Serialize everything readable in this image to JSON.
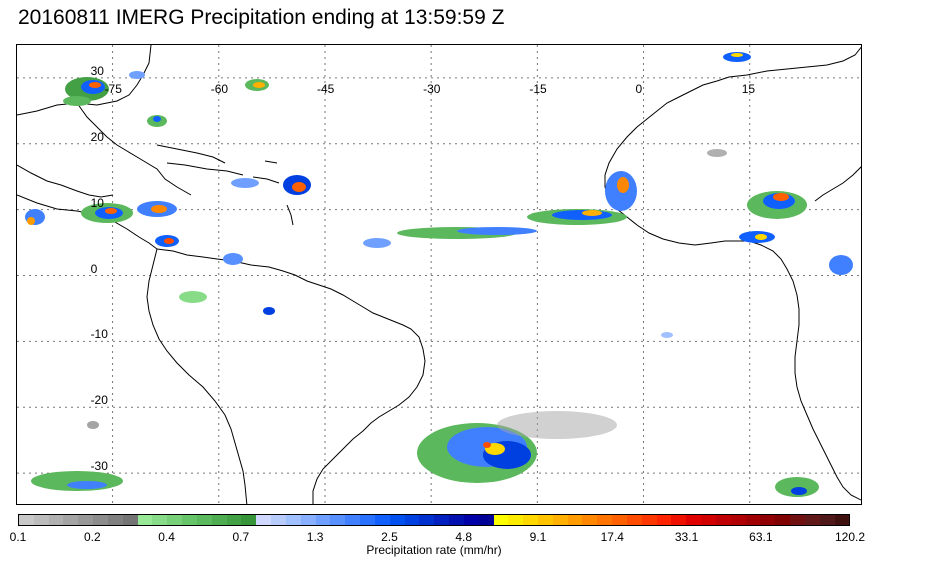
{
  "title": "20160811 IMERG Precipitation ending at 13:59:59 Z",
  "map": {
    "lon_labels": [
      "-75",
      "-60",
      "-45",
      "-30",
      "-15",
      "0",
      "15"
    ],
    "lat_labels": [
      "30",
      "20",
      "10",
      "0",
      "-10",
      "-20",
      "-30"
    ],
    "lon_values": [
      -75,
      -60,
      -45,
      -30,
      -15,
      0,
      15
    ],
    "lat_values": [
      30,
      20,
      10,
      0,
      -10,
      -20,
      -30
    ],
    "lon_range": [
      -88.5,
      31
    ],
    "lat_range": [
      35,
      -35
    ],
    "grid": true,
    "coastline_color": "#000000"
  },
  "colorbar": {
    "title": "Precipitation rate (mm/hr)",
    "tick_labels": [
      "0.1",
      "0.2",
      "0.4",
      "0.7",
      "1.3",
      "2.5",
      "4.8",
      "9.1",
      "17.4",
      "33.1",
      "63.1",
      "120.2"
    ],
    "colors": [
      "#c8c8c8",
      "#bcbcbc",
      "#b0b0b0",
      "#a4a4a4",
      "#989898",
      "#8c8c8c",
      "#808080",
      "#747474",
      "#98e898",
      "#88dc88",
      "#78d078",
      "#68c468",
      "#5cb85c",
      "#50ac50",
      "#44a044",
      "#389438",
      "#d0d8ff",
      "#b8ccff",
      "#a0c0ff",
      "#88b0ff",
      "#70a0ff",
      "#5890ff",
      "#4080ff",
      "#2870ff",
      "#1060ff",
      "#0050f0",
      "#0040e0",
      "#0030d0",
      "#0020c0",
      "#0010b0",
      "#0000a8",
      "#000098",
      "#ffff00",
      "#ffec00",
      "#ffd800",
      "#ffc400",
      "#ffb000",
      "#ff9c00",
      "#ff8800",
      "#ff7400",
      "#ff6000",
      "#ff4c00",
      "#ff3800",
      "#ff2400",
      "#f01000",
      "#e00000",
      "#d00000",
      "#c00000",
      "#b00000",
      "#a00000",
      "#900000",
      "#800000",
      "#701010",
      "#601818",
      "#501818",
      "#401010"
    ]
  }
}
